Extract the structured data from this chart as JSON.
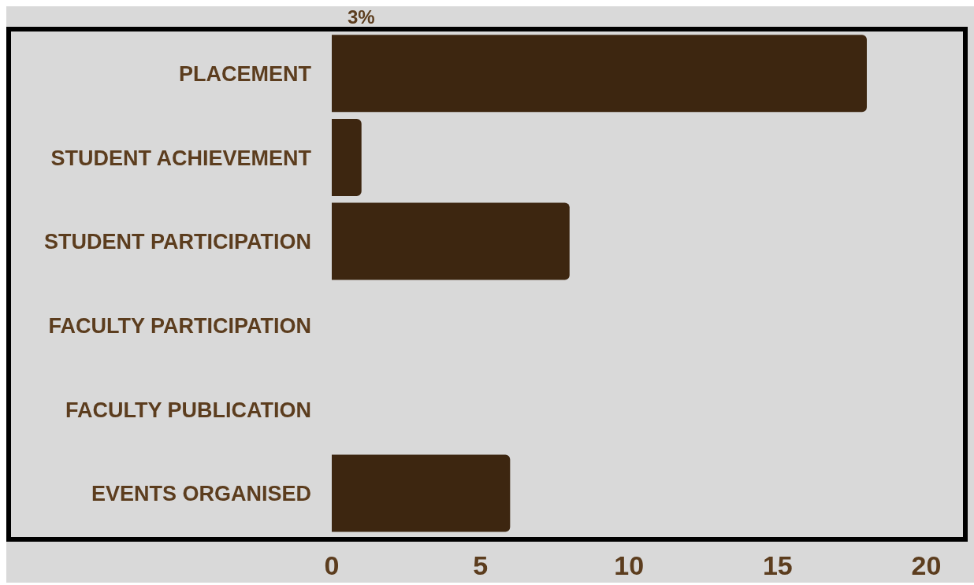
{
  "chart_data": {
    "type": "bar",
    "orientation": "horizontal",
    "categories": [
      "PLACEMENT",
      "STUDENT ACHIEVEMENT",
      "STUDENT PARTICIPATION",
      "FACULTY PARTICIPATION",
      "FACULTY PUBLICATION",
      "EVENTS ORGANISED"
    ],
    "values": [
      18,
      1,
      8,
      0,
      0,
      6
    ],
    "color": "#3d2610",
    "xlim": [
      0,
      21.5
    ],
    "xticks": [
      0,
      5,
      10,
      15,
      20
    ],
    "annotations": [
      "3%"
    ]
  }
}
